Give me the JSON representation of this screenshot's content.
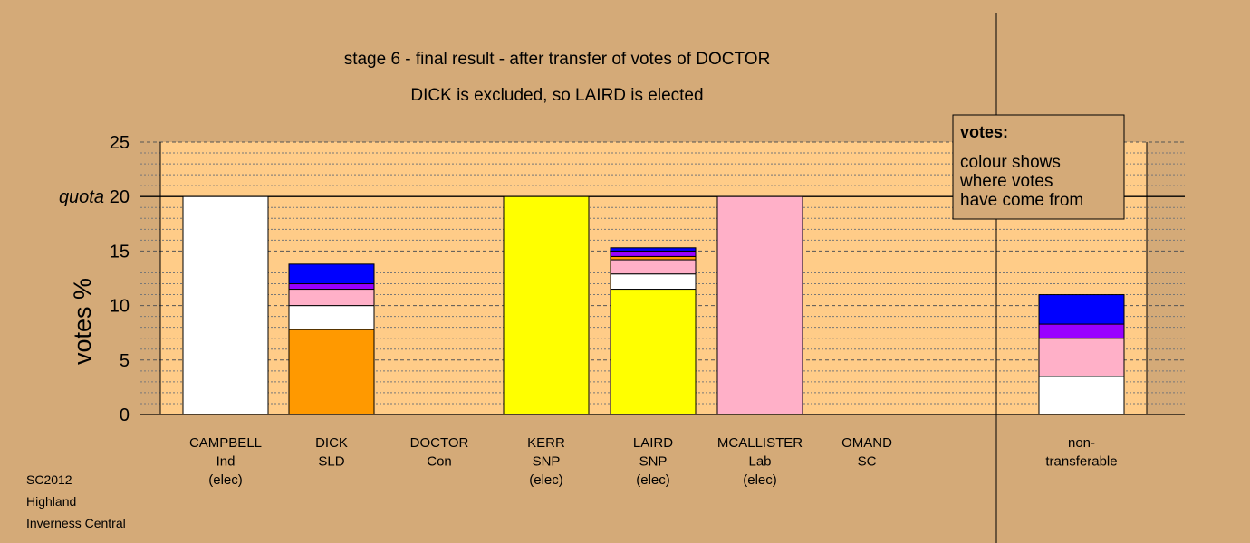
{
  "chart_data": {
    "type": "bar",
    "stacked": true,
    "title": "stage 6 - final result - after transfer of votes of DOCTOR",
    "subtitle": "DICK is excluded, so LAIRD is elected",
    "ylabel": "votes %",
    "ylim": [
      0,
      25
    ],
    "yticks": [
      0,
      5,
      10,
      15,
      20,
      25
    ],
    "quota": {
      "label": "quota",
      "value": 20
    },
    "grid": true,
    "categories": [
      {
        "name": "CAMPBELL",
        "party": "Ind",
        "status": "(elec)"
      },
      {
        "name": "DICK",
        "party": "SLD",
        "status": ""
      },
      {
        "name": "DOCTOR",
        "party": "Con",
        "status": ""
      },
      {
        "name": "KERR",
        "party": "SNP",
        "status": "(elec)"
      },
      {
        "name": "LAIRD",
        "party": "SNP",
        "status": "(elec)"
      },
      {
        "name": "MCALLISTER",
        "party": "Lab",
        "status": "(elec)"
      },
      {
        "name": "OMAND",
        "party": "SC",
        "status": ""
      },
      {
        "name": "non-",
        "party": "transferable",
        "status": ""
      }
    ],
    "bars": [
      [
        {
          "value": 20.0,
          "color": "#ffffff"
        }
      ],
      [
        {
          "value": 7.8,
          "color": "#ff9900"
        },
        {
          "value": 2.2,
          "color": "#ffffff"
        },
        {
          "value": 1.5,
          "color": "#ffb0c8"
        },
        {
          "value": 0.5,
          "color": "#9900ff"
        },
        {
          "value": 1.8,
          "color": "#0000ff"
        }
      ],
      [],
      [
        {
          "value": 20.0,
          "color": "#ffff00"
        }
      ],
      [
        {
          "value": 11.5,
          "color": "#ffff00"
        },
        {
          "value": 1.4,
          "color": "#ffffff"
        },
        {
          "value": 1.3,
          "color": "#ffb0c8"
        },
        {
          "value": 0.3,
          "color": "#ff9900"
        },
        {
          "value": 0.5,
          "color": "#9900ff"
        },
        {
          "value": 0.3,
          "color": "#0000ff"
        }
      ],
      [
        {
          "value": 20.0,
          "color": "#ffb0c8"
        }
      ],
      [],
      [
        {
          "value": 3.5,
          "color": "#ffffff"
        },
        {
          "value": 3.5,
          "color": "#ffb0c8"
        },
        {
          "value": 1.3,
          "color": "#9900ff"
        },
        {
          "value": 2.7,
          "color": "#0000ff"
        }
      ]
    ],
    "legend": {
      "title": "votes:",
      "lines": [
        "colour shows",
        "where votes",
        "have come from"
      ],
      "placement": "top-right"
    }
  },
  "footer": {
    "lines": [
      "SC2012",
      "Highland",
      "Inverness Central"
    ]
  },
  "colors": {
    "background": "#d4aa78",
    "plot_area": "#ffcc88"
  }
}
